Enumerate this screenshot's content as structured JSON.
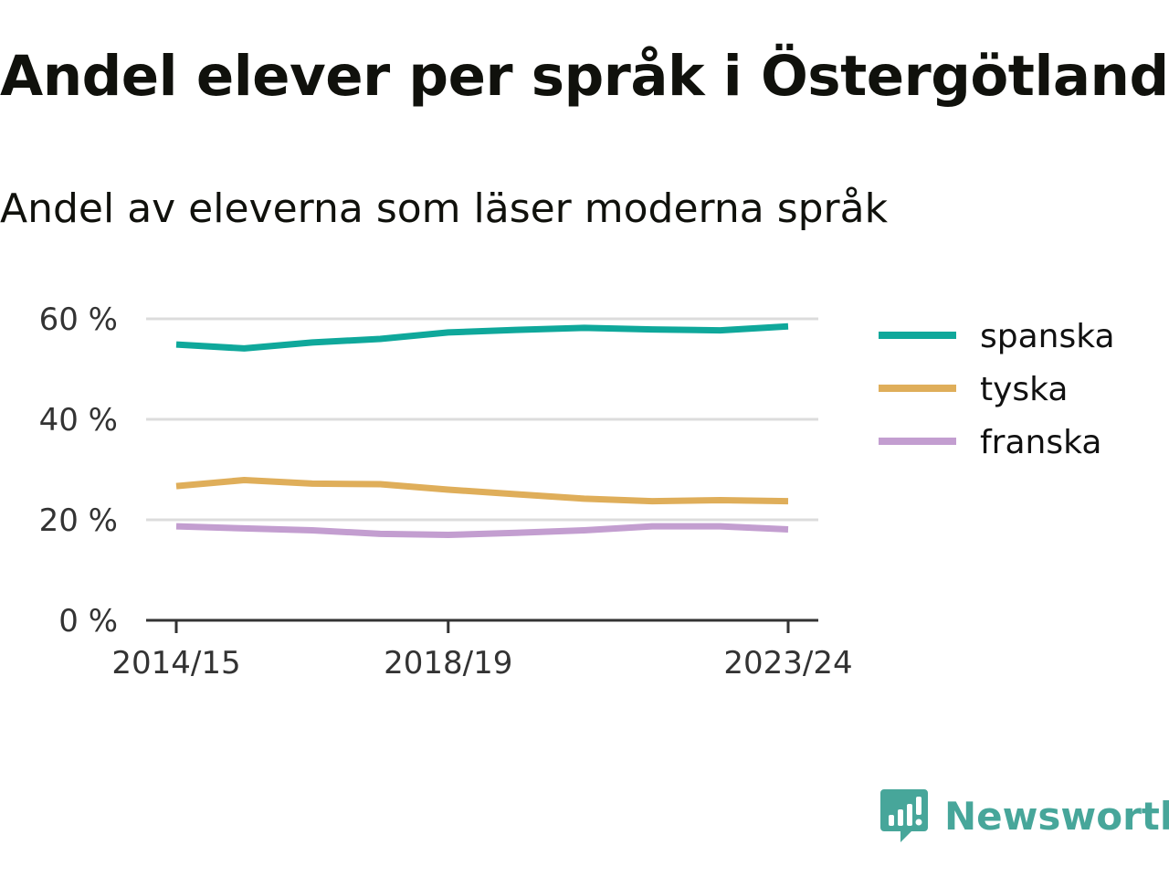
{
  "title": "Andel elever per språk i Östergötland",
  "subtitle": "Andel av eleverna som läser moderna språk",
  "chart_data": {
    "type": "line",
    "x": [
      "2014/15",
      "2015/16",
      "2016/17",
      "2017/18",
      "2018/19",
      "2019/20",
      "2020/21",
      "2021/22",
      "2022/23",
      "2023/24"
    ],
    "x_tick_labels": [
      "2014/15",
      "2018/19",
      "2023/24"
    ],
    "series": [
      {
        "name": "spanska",
        "color": "#0fa89b",
        "values": [
          54.9,
          54.1,
          55.3,
          56.0,
          57.3,
          57.8,
          58.2,
          57.9,
          57.7,
          58.5
        ]
      },
      {
        "name": "tyska",
        "color": "#dfae5a",
        "values": [
          26.7,
          27.9,
          27.2,
          27.1,
          26.0,
          25.1,
          24.2,
          23.7,
          23.9,
          23.7
        ]
      },
      {
        "name": "franska",
        "color": "#c39ed0",
        "values": [
          18.7,
          18.3,
          17.9,
          17.2,
          17.0,
          17.4,
          17.9,
          18.7,
          18.7,
          18.1
        ]
      }
    ],
    "y_ticks": [
      0,
      20,
      40,
      60
    ],
    "y_tick_labels": [
      "0 %",
      "20 %",
      "40 %",
      "60 %"
    ],
    "ylim": [
      0,
      60
    ],
    "grid": true,
    "legend": "right"
  },
  "logo": {
    "text": "Newsworthy",
    "icon": "bar-chart-speech-bubble-icon",
    "color": "#47a69a"
  }
}
